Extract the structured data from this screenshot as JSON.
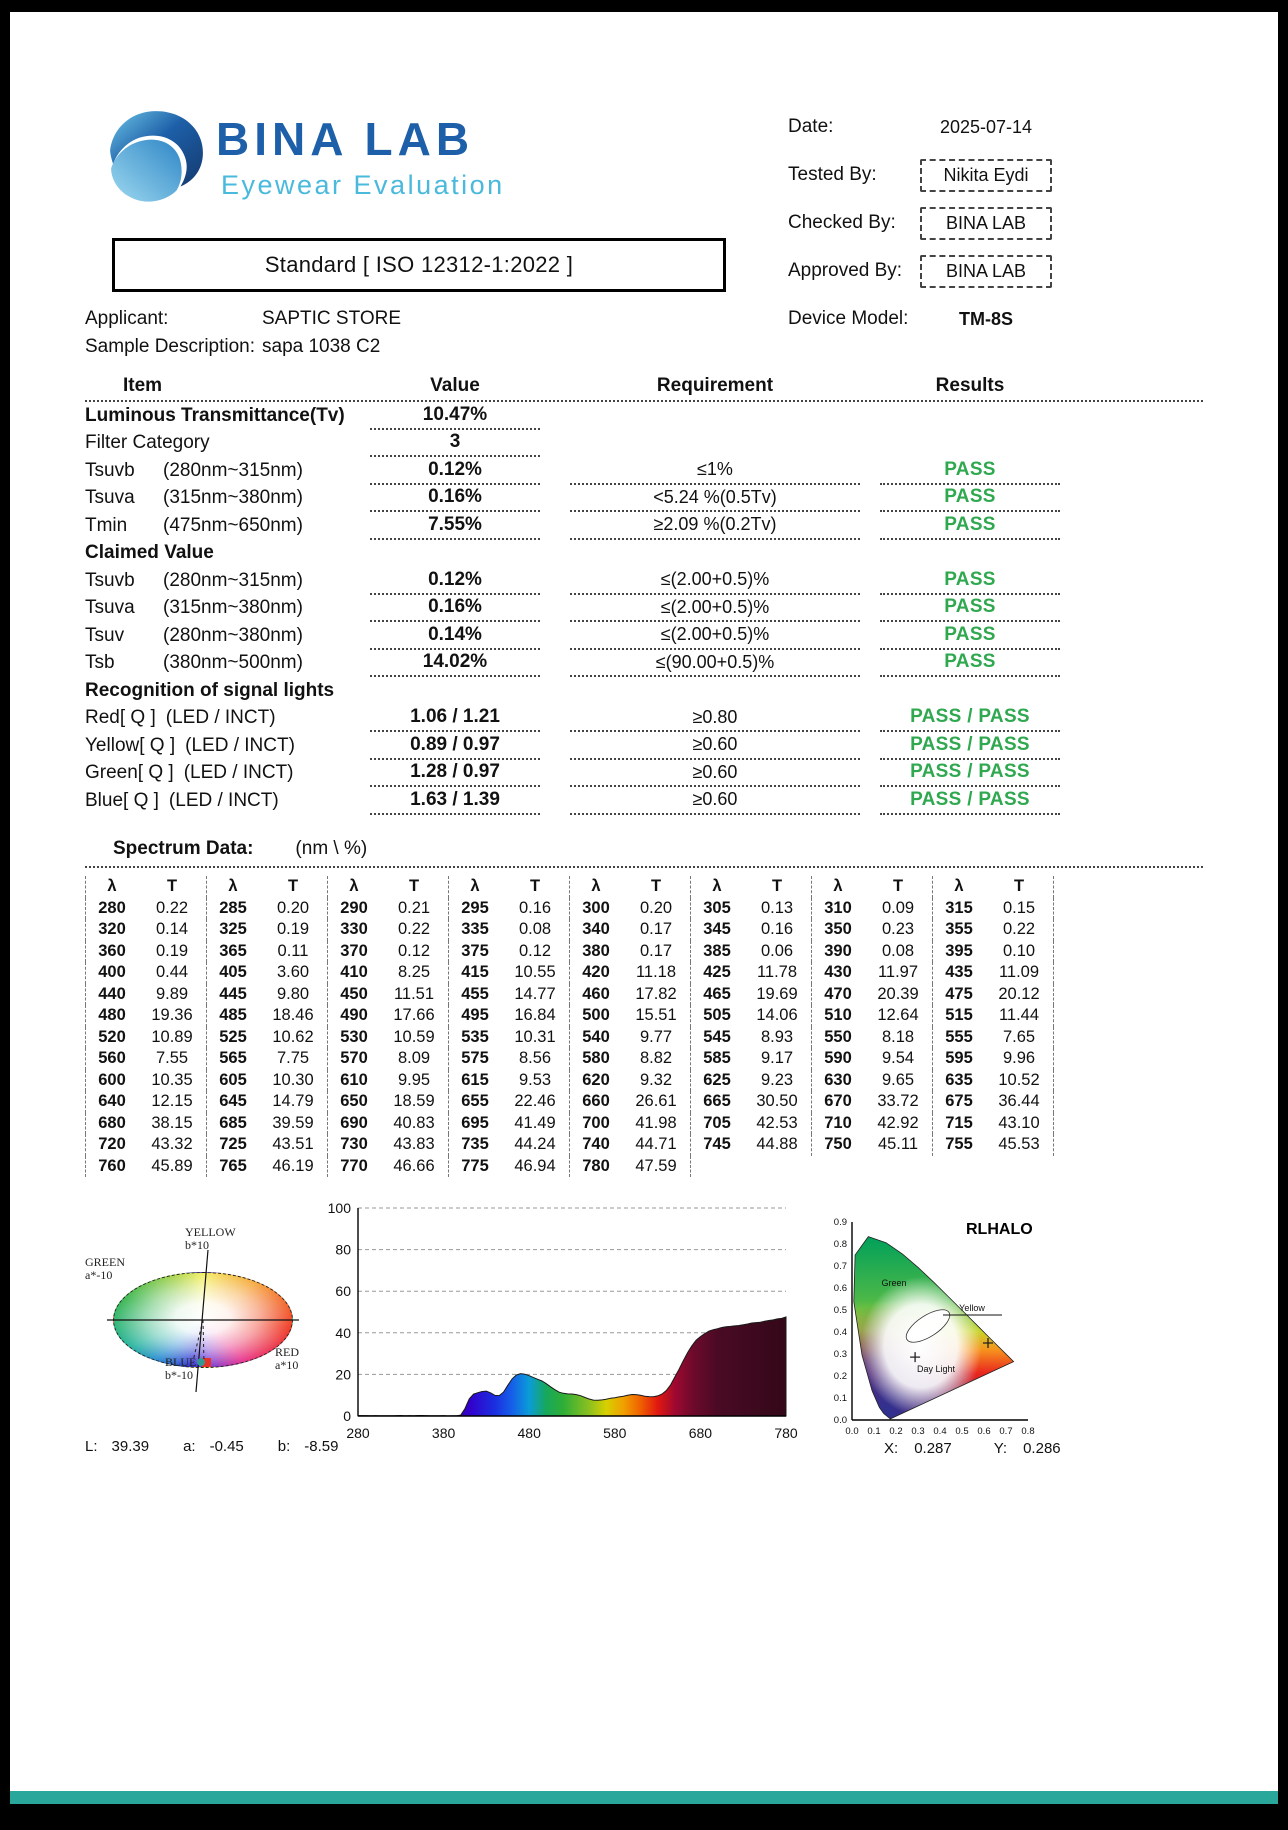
{
  "colors": {
    "brand_blue": "#1d5fa8",
    "brand_light_blue": "#49b9dc",
    "pass_green": "#2fa84f",
    "footer_teal": "#2aa79b"
  },
  "header": {
    "brand": "BINA LAB",
    "brand_sub": "Eyewear Evaluation",
    "fields": [
      {
        "label": "Date:",
        "value": "2025-07-14",
        "boxed": false,
        "bold": false
      },
      {
        "label": "Tested By:",
        "value": "Nikita Eydi",
        "boxed": true,
        "bold": false
      },
      {
        "label": "Checked By:",
        "value": "BINA LAB",
        "boxed": true,
        "bold": false
      },
      {
        "label": "Approved By:",
        "value": "BINA LAB",
        "boxed": true,
        "bold": false
      },
      {
        "label": "Device Model:",
        "value": "TM-8S",
        "boxed": false,
        "bold": true
      }
    ]
  },
  "standard_title": "Standard [ ISO 12312-1:2022 ]",
  "info": {
    "applicant_label": "Applicant:",
    "applicant_value": "SAPTIC STORE",
    "sample_label": "Sample Description:",
    "sample_value": "sapa 1038 C2"
  },
  "results_table": {
    "headers": {
      "item": "Item",
      "value": "Value",
      "requirement": "Requirement",
      "results": "Results"
    },
    "rows": [
      {
        "type": "data",
        "bold_item": true,
        "item": "Luminous Transmittance(Tv)",
        "range": "",
        "value": "10.47%",
        "requirement": "",
        "result": ""
      },
      {
        "type": "data",
        "item": "Filter Category",
        "range": "",
        "value": "3",
        "requirement": "",
        "result": ""
      },
      {
        "type": "data",
        "item": "Tsuvb",
        "range": "(280nm~315nm)",
        "value": "0.12%",
        "requirement": "≤1%",
        "result": "PASS"
      },
      {
        "type": "data",
        "item": "Tsuva",
        "range": "(315nm~380nm)",
        "value": "0.16%",
        "requirement": "<5.24 %(0.5Tv)",
        "result": "PASS"
      },
      {
        "type": "data",
        "item": "Tmin",
        "range": "(475nm~650nm)",
        "value": "7.55%",
        "requirement": "≥2.09 %(0.2Tv)",
        "result": "PASS"
      },
      {
        "type": "section",
        "item": "Claimed Value"
      },
      {
        "type": "data",
        "item": "Tsuvb",
        "range": "(280nm~315nm)",
        "value": "0.12%",
        "requirement": "≤(2.00+0.5)%",
        "result": "PASS"
      },
      {
        "type": "data",
        "item": "Tsuva",
        "range": "(315nm~380nm)",
        "value": "0.16%",
        "requirement": "≤(2.00+0.5)%",
        "result": "PASS"
      },
      {
        "type": "data",
        "item": "Tsuv",
        "range": "(280nm~380nm)",
        "value": "0.14%",
        "requirement": "≤(2.00+0.5)%",
        "result": "PASS"
      },
      {
        "type": "data",
        "item": "Tsb",
        "range": "(380nm~500nm)",
        "value": "14.02%",
        "requirement": "≤(90.00+0.5)%",
        "result": "PASS"
      },
      {
        "type": "section",
        "item": "Recognition of signal lights"
      },
      {
        "type": "data",
        "item": "Red[ Q ]",
        "range": "(LED / INCT)",
        "value": "1.06 / 1.21",
        "requirement": "≥0.80",
        "result": "PASS / PASS"
      },
      {
        "type": "data",
        "item": "Yellow[ Q ]",
        "range": "(LED / INCT)",
        "value": "0.89 / 0.97",
        "requirement": "≥0.60",
        "result": "PASS / PASS"
      },
      {
        "type": "data",
        "item": "Green[ Q ]",
        "range": "(LED / INCT)",
        "value": "1.28 / 0.97",
        "requirement": "≥0.60",
        "result": "PASS / PASS"
      },
      {
        "type": "data",
        "item": "Blue[ Q ]",
        "range": "(LED / INCT)",
        "value": "1.63 / 1.39",
        "requirement": "≥0.60",
        "result": "PASS / PASS"
      }
    ]
  },
  "spectrum_table": {
    "title": "Spectrum Data:",
    "unit": "(nm \\ %)",
    "lambda_header": "λ",
    "t_header": "T",
    "pairs_per_row": 8
  },
  "chart_data": [
    {
      "id": "lab-color-plane",
      "type": "scatter",
      "axis_labels": [
        "GREEN\na*-10",
        "YELLOW\nb*10",
        "RED\na*10",
        "BLUE\nb*-10"
      ],
      "labels_row": {
        "L": "L:",
        "a": "a:",
        "b": "b:"
      },
      "point": {
        "L": "39.39",
        "a": "-0.45",
        "b": "-8.59"
      }
    },
    {
      "id": "transmittance-spectrum",
      "type": "area",
      "xlim": [
        280,
        780
      ],
      "ylim": [
        0,
        100
      ],
      "x_ticks": [
        "280",
        "380",
        "480",
        "580",
        "680",
        "780"
      ],
      "y_ticks": [
        "0",
        "20",
        "40",
        "60",
        "80",
        "100"
      ],
      "points": [
        [
          "280",
          "0.22"
        ],
        [
          "285",
          "0.20"
        ],
        [
          "290",
          "0.21"
        ],
        [
          "295",
          "0.16"
        ],
        [
          "300",
          "0.20"
        ],
        [
          "305",
          "0.13"
        ],
        [
          "310",
          "0.09"
        ],
        [
          "315",
          "0.15"
        ],
        [
          "320",
          "0.14"
        ],
        [
          "325",
          "0.19"
        ],
        [
          "330",
          "0.22"
        ],
        [
          "335",
          "0.08"
        ],
        [
          "340",
          "0.17"
        ],
        [
          "345",
          "0.16"
        ],
        [
          "350",
          "0.23"
        ],
        [
          "355",
          "0.22"
        ],
        [
          "360",
          "0.19"
        ],
        [
          "365",
          "0.11"
        ],
        [
          "370",
          "0.12"
        ],
        [
          "375",
          "0.12"
        ],
        [
          "380",
          "0.17"
        ],
        [
          "385",
          "0.06"
        ],
        [
          "390",
          "0.08"
        ],
        [
          "395",
          "0.10"
        ],
        [
          "400",
          "0.44"
        ],
        [
          "405",
          "3.60"
        ],
        [
          "410",
          "8.25"
        ],
        [
          "415",
          "10.55"
        ],
        [
          "420",
          "11.18"
        ],
        [
          "425",
          "11.78"
        ],
        [
          "430",
          "11.97"
        ],
        [
          "435",
          "11.09"
        ],
        [
          "440",
          "9.89"
        ],
        [
          "445",
          "9.80"
        ],
        [
          "450",
          "11.51"
        ],
        [
          "455",
          "14.77"
        ],
        [
          "460",
          "17.82"
        ],
        [
          "465",
          "19.69"
        ],
        [
          "470",
          "20.39"
        ],
        [
          "475",
          "20.12"
        ],
        [
          "480",
          "19.36"
        ],
        [
          "485",
          "18.46"
        ],
        [
          "490",
          "17.66"
        ],
        [
          "495",
          "16.84"
        ],
        [
          "500",
          "15.51"
        ],
        [
          "505",
          "14.06"
        ],
        [
          "510",
          "12.64"
        ],
        [
          "515",
          "11.44"
        ],
        [
          "520",
          "10.89"
        ],
        [
          "525",
          "10.62"
        ],
        [
          "530",
          "10.59"
        ],
        [
          "535",
          "10.31"
        ],
        [
          "540",
          "9.77"
        ],
        [
          "545",
          "8.93"
        ],
        [
          "550",
          "8.18"
        ],
        [
          "555",
          "7.65"
        ],
        [
          "560",
          "7.55"
        ],
        [
          "565",
          "7.75"
        ],
        [
          "570",
          "8.09"
        ],
        [
          "575",
          "8.56"
        ],
        [
          "580",
          "8.82"
        ],
        [
          "585",
          "9.17"
        ],
        [
          "590",
          "9.54"
        ],
        [
          "595",
          "9.96"
        ],
        [
          "600",
          "10.35"
        ],
        [
          "605",
          "10.30"
        ],
        [
          "610",
          "9.95"
        ],
        [
          "615",
          "9.53"
        ],
        [
          "620",
          "9.32"
        ],
        [
          "625",
          "9.23"
        ],
        [
          "630",
          "9.65"
        ],
        [
          "635",
          "10.52"
        ],
        [
          "640",
          "12.15"
        ],
        [
          "645",
          "14.79"
        ],
        [
          "650",
          "18.59"
        ],
        [
          "655",
          "22.46"
        ],
        [
          "660",
          "26.61"
        ],
        [
          "665",
          "30.50"
        ],
        [
          "670",
          "33.72"
        ],
        [
          "675",
          "36.44"
        ],
        [
          "680",
          "38.15"
        ],
        [
          "685",
          "39.59"
        ],
        [
          "690",
          "40.83"
        ],
        [
          "695",
          "41.49"
        ],
        [
          "700",
          "41.98"
        ],
        [
          "705",
          "42.53"
        ],
        [
          "710",
          "42.92"
        ],
        [
          "715",
          "43.10"
        ],
        [
          "720",
          "43.32"
        ],
        [
          "725",
          "43.51"
        ],
        [
          "730",
          "43.83"
        ],
        [
          "735",
          "44.24"
        ],
        [
          "740",
          "44.71"
        ],
        [
          "745",
          "44.88"
        ],
        [
          "750",
          "45.11"
        ],
        [
          "755",
          "45.53"
        ],
        [
          "760",
          "45.89"
        ],
        [
          "765",
          "46.19"
        ],
        [
          "770",
          "46.66"
        ],
        [
          "775",
          "46.94"
        ],
        [
          "780",
          "47.59"
        ]
      ]
    },
    {
      "id": "cie-chromaticity",
      "type": "scatter",
      "title": "RLHALO",
      "labels": [
        "Green",
        "Yellow",
        "Day Light"
      ],
      "labels_row": {
        "X": "X:",
        "Y": "Y:"
      },
      "x_ticks": [
        "0.0",
        "0.1",
        "0.2",
        "0.3",
        "0.4",
        "0.5",
        "0.6",
        "0.7",
        "0.8"
      ],
      "y_ticks": [
        "0.0",
        "0.1",
        "0.2",
        "0.3",
        "0.4",
        "0.5",
        "0.6",
        "0.7",
        "0.8",
        "0.9"
      ],
      "point": {
        "x": "0.287",
        "y": "0.286"
      }
    }
  ]
}
